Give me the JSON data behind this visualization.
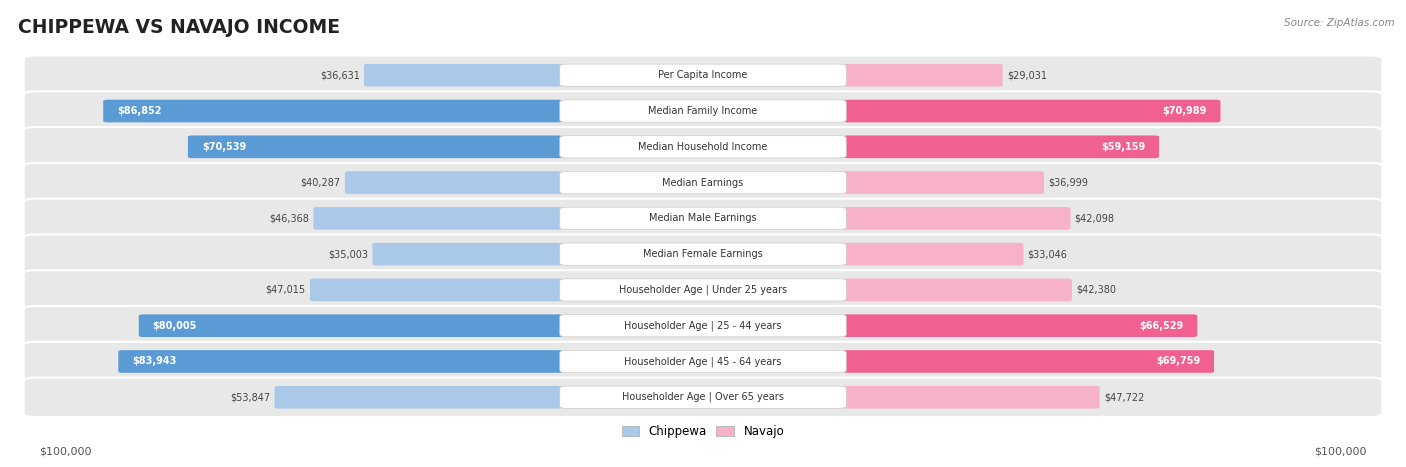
{
  "title": "CHIPPEWA VS NAVAJO INCOME",
  "source": "Source: ZipAtlas.com",
  "categories": [
    "Per Capita Income",
    "Median Family Income",
    "Median Household Income",
    "Median Earnings",
    "Median Male Earnings",
    "Median Female Earnings",
    "Householder Age | Under 25 years",
    "Householder Age | 25 - 44 years",
    "Householder Age | 45 - 64 years",
    "Householder Age | Over 65 years"
  ],
  "chippewa_values": [
    36631,
    86852,
    70539,
    40287,
    46368,
    35003,
    47015,
    80005,
    83943,
    53847
  ],
  "navajo_values": [
    29031,
    70989,
    59159,
    36999,
    42098,
    33046,
    42380,
    66529,
    69759,
    47722
  ],
  "max_value": 100000,
  "chippewa_color_light": "#aac8e8",
  "chippewa_color_dark": "#5b9bd5",
  "navajo_color_light": "#f7b2c8",
  "navajo_color_dark": "#f06090",
  "row_bg_color": "#e8e8e8",
  "center_label_bg": "#ffffff",
  "center_label_border": "#cccccc",
  "chip_threshold": 55000,
  "nav_threshold": 55000,
  "ylabel_left": "$100,000",
  "ylabel_right": "$100,000",
  "legend_chip_color": "#aac8e8",
  "legend_nav_color": "#f7b2c8"
}
